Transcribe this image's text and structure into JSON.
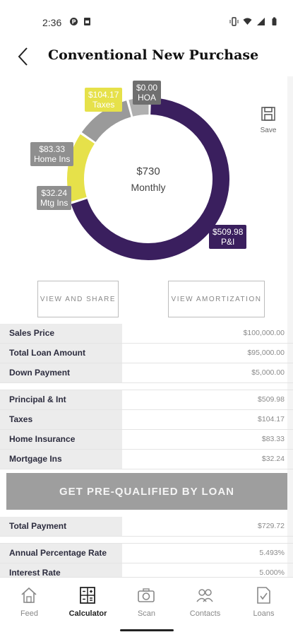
{
  "status": {
    "time": "2:36"
  },
  "header": {
    "title": "Conventional New Purchase"
  },
  "save": {
    "label": "Save"
  },
  "chart": {
    "center_amount": "$730",
    "center_label": "Monthly",
    "labels": {
      "taxes": {
        "amount": "$104.17",
        "name": "Taxes"
      },
      "hoa": {
        "amount": "$0.00",
        "name": "HOA"
      },
      "home_ins": {
        "amount": "$83.33",
        "name": "Home Ins"
      },
      "mtg_ins": {
        "amount": "$32.24",
        "name": "Mtg Ins"
      },
      "pi": {
        "amount": "$509.98",
        "name": "P&I"
      }
    },
    "colors": {
      "pi": "#3a1f5e",
      "taxes": "#e6e14a",
      "home_ins": "#9a9a9a",
      "mtg_ins": "#b0b0b0",
      "hoa": "#6f6f6f"
    }
  },
  "chart_data": {
    "type": "pie",
    "categories": [
      "P&I",
      "Taxes",
      "HOA",
      "Home Ins",
      "Mtg Ins"
    ],
    "values": [
      509.98,
      104.17,
      0.0,
      83.33,
      32.24
    ],
    "title": "$730 Monthly"
  },
  "buttons": {
    "view_share": "VIEW AND SHARE",
    "view_amort": "VIEW AMORTIZATION",
    "prequal": "GET PRE-QUALIFIED BY LOAN"
  },
  "table1": [
    {
      "label": "Sales Price",
      "value": "$100,000.00"
    },
    {
      "label": "Total Loan Amount",
      "value": "$95,000.00"
    },
    {
      "label": "Down Payment",
      "value": "$5,000.00"
    }
  ],
  "table2": [
    {
      "label": "Principal & Int",
      "value": "$509.98"
    },
    {
      "label": "Taxes",
      "value": "$104.17"
    },
    {
      "label": "Home Insurance",
      "value": "$83.33"
    },
    {
      "label": "Mortgage Ins",
      "value": "$32.24"
    }
  ],
  "total": {
    "label": "Total Payment",
    "value": "$729.72"
  },
  "rates": [
    {
      "label": "Annual Percentage Rate",
      "value": "5.493%"
    },
    {
      "label": "Interest Rate",
      "value": "5.000%"
    }
  ],
  "nav": [
    {
      "label": "Feed",
      "icon": "home-icon"
    },
    {
      "label": "Calculator",
      "icon": "calculator-icon"
    },
    {
      "label": "Scan",
      "icon": "camera-icon"
    },
    {
      "label": "Contacts",
      "icon": "contacts-icon"
    },
    {
      "label": "Loans",
      "icon": "document-icon"
    }
  ]
}
